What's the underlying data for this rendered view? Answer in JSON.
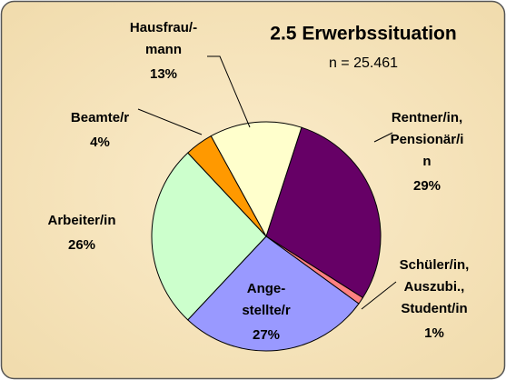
{
  "chart_data": {
    "type": "pie",
    "title": "2.5  Erwerbssituation",
    "subtitle": "n = 25.461",
    "categories": [
      [
        "Rentner/in,",
        "Pensionär/i",
        "n"
      ],
      [
        "Schüler/in,",
        "Auszubi.,",
        "Student/in"
      ],
      [
        "Ange-",
        "stellte/r"
      ],
      [
        "Arbeiter/in"
      ],
      [
        "Beamte/r"
      ],
      [
        "Hausfrau/-",
        "mann"
      ]
    ],
    "values": [
      29,
      1,
      27,
      26,
      4,
      13
    ],
    "value_labels": [
      "29%",
      "1%",
      "27%",
      "26%",
      "4%",
      "13%"
    ],
    "colors": [
      "#660066",
      "#ff8080",
      "#9999ff",
      "#ccffcc",
      "#ff9900",
      "#ffffcc"
    ]
  }
}
